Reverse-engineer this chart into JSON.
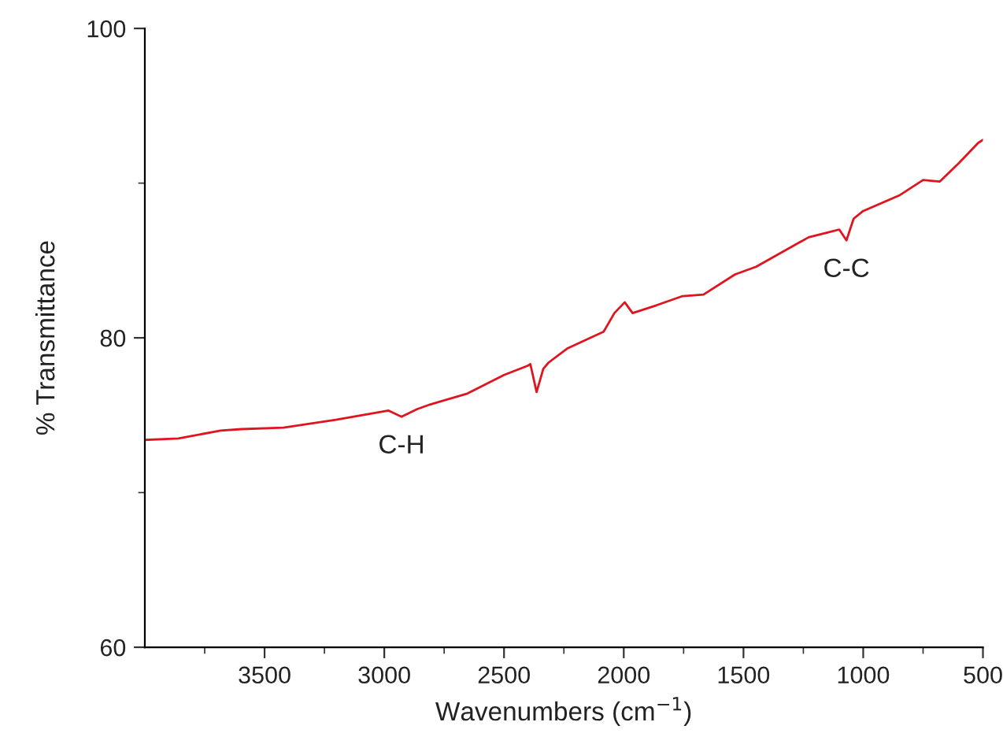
{
  "chart_data": {
    "type": "line",
    "xlabel": "Wavenumbers (cm$^{−1}$)",
    "ylabel": "% Transmittance",
    "x": [
      4000,
      3860,
      3684,
      3597,
      3421,
      3202,
      2982,
      2928,
      2862,
      2807,
      2653,
      2500,
      2401,
      2390,
      2364,
      2347,
      2336,
      2314,
      2237,
      2084,
      2039,
      1996,
      1963,
      1864,
      1754,
      1667,
      1535,
      1447,
      1228,
      1150,
      1100,
      1070,
      1040,
      1000,
      850,
      750,
      680,
      600,
      520,
      500
    ],
    "series": [
      {
        "color": "#e0141e",
        "values": [
          73.4,
          73.5,
          74.0,
          74.1,
          74.2,
          74.7,
          75.3,
          74.9,
          75.4,
          75.7,
          76.4,
          77.6,
          78.2,
          78.3,
          76.5,
          77.4,
          78.0,
          78.4,
          79.3,
          80.4,
          81.6,
          82.3,
          81.6,
          82.1,
          82.7,
          82.8,
          84.1,
          84.6,
          86.5,
          86.8,
          87.0,
          86.3,
          87.7,
          88.2,
          89.2,
          90.2,
          90.1,
          91.3,
          92.6,
          92.8
        ]
      }
    ],
    "xlim": [
      4000,
      500
    ],
    "xticks": [
      {
        "value": 3750,
        "label": null
      },
      3500,
      {
        "value": 3250,
        "label": null
      },
      3000,
      {
        "value": 2750,
        "label": null
      },
      2500,
      {
        "value": 2250,
        "label": null
      },
      2000,
      {
        "value": 1750,
        "label": null
      },
      1500,
      {
        "value": 1250,
        "label": null
      },
      1000,
      {
        "value": 750,
        "label": null
      },
      500
    ],
    "ylim": [
      60,
      100
    ],
    "yticks": [
      60,
      {
        "value": 70,
        "label": null
      },
      80,
      {
        "value": 90,
        "label": null
      },
      100
    ],
    "grid": false,
    "legend": false,
    "annotations": [
      {
        "text": "C-H",
        "x": 2928,
        "y": 74.9
      },
      {
        "text": "C-C",
        "x": 1070,
        "y": 86.3
      }
    ]
  }
}
